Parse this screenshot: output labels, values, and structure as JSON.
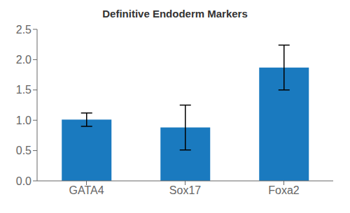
{
  "chart_data": {
    "type": "bar",
    "title": "Definitive Endoderm Markers",
    "categories": [
      "GATA4",
      "Sox17",
      "Foxa2"
    ],
    "values": [
      1.01,
      0.88,
      1.87
    ],
    "errors": [
      0.11,
      0.37,
      0.37
    ],
    "color": "#1a7abf",
    "ylim": [
      0,
      2.5
    ],
    "yticks": [
      {
        "value": 0,
        "label": "0.0"
      },
      0.5,
      {
        "value": 1.0,
        "label": "1.0"
      },
      1.5,
      {
        "value": 2.0,
        "label": "2.0"
      },
      2.5
    ],
    "grid": false
  }
}
